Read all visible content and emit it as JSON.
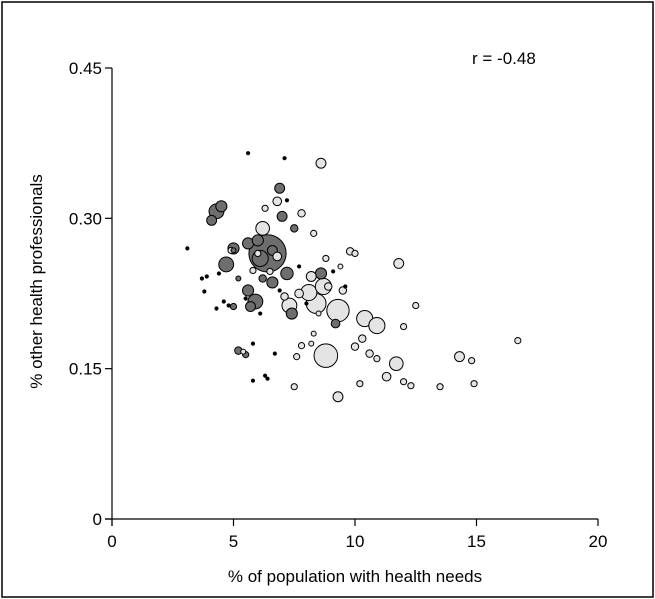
{
  "chart_data": {
    "type": "scatter",
    "title": "",
    "xlabel": "% of population with health needs",
    "ylabel": "% other health professionals",
    "xlim": [
      0,
      20
    ],
    "ylim": [
      0,
      0.45
    ],
    "xticks": [
      "0",
      "5",
      "10",
      "15",
      "20"
    ],
    "yticks": [
      "0",
      "0.15",
      "0.30",
      "0.45"
    ],
    "xtick_values": [
      0,
      5,
      10,
      15,
      20
    ],
    "ytick_values": [
      0,
      0.15,
      0.3,
      0.45
    ],
    "grid": false,
    "legend": "none",
    "annotation": "r = -0.48",
    "colors": {
      "dark": "#6e6e6e",
      "light": "#e4e4e4",
      "tiny": "#000000"
    },
    "points": [
      {
        "x": 6.4,
        "y": 0.265,
        "size": 3.0,
        "group": "dark"
      },
      {
        "x": 6.1,
        "y": 0.26,
        "size": 1.3,
        "group": "dark"
      },
      {
        "x": 6.6,
        "y": 0.268,
        "size": 0.8,
        "group": "dark"
      },
      {
        "x": 6.8,
        "y": 0.262,
        "size": 0.7,
        "group": "light"
      },
      {
        "x": 4.3,
        "y": 0.307,
        "size": 1.2,
        "group": "dark"
      },
      {
        "x": 4.5,
        "y": 0.312,
        "size": 0.9,
        "group": "dark"
      },
      {
        "x": 4.1,
        "y": 0.298,
        "size": 0.8,
        "group": "dark"
      },
      {
        "x": 4.7,
        "y": 0.254,
        "size": 1.2,
        "group": "dark"
      },
      {
        "x": 5.0,
        "y": 0.27,
        "size": 0.9,
        "group": "dark"
      },
      {
        "x": 4.9,
        "y": 0.268,
        "size": 0.5,
        "group": "light"
      },
      {
        "x": 5.6,
        "y": 0.275,
        "size": 0.9,
        "group": "dark"
      },
      {
        "x": 6.0,
        "y": 0.278,
        "size": 0.9,
        "group": "dark"
      },
      {
        "x": 5.9,
        "y": 0.217,
        "size": 1.2,
        "group": "dark"
      },
      {
        "x": 5.6,
        "y": 0.228,
        "size": 0.9,
        "group": "dark"
      },
      {
        "x": 5.7,
        "y": 0.212,
        "size": 0.8,
        "group": "dark"
      },
      {
        "x": 6.2,
        "y": 0.29,
        "size": 1.1,
        "group": "light"
      },
      {
        "x": 6.6,
        "y": 0.236,
        "size": 0.9,
        "group": "dark"
      },
      {
        "x": 6.9,
        "y": 0.33,
        "size": 0.8,
        "group": "dark"
      },
      {
        "x": 7.0,
        "y": 0.302,
        "size": 0.8,
        "group": "dark"
      },
      {
        "x": 6.8,
        "y": 0.317,
        "size": 0.7,
        "group": "light"
      },
      {
        "x": 7.2,
        "y": 0.245,
        "size": 1.0,
        "group": "dark"
      },
      {
        "x": 7.3,
        "y": 0.213,
        "size": 1.2,
        "group": "light"
      },
      {
        "x": 7.4,
        "y": 0.205,
        "size": 0.9,
        "group": "dark"
      },
      {
        "x": 7.1,
        "y": 0.222,
        "size": 0.6,
        "group": "light"
      },
      {
        "x": 7.7,
        "y": 0.225,
        "size": 0.7,
        "group": "light"
      },
      {
        "x": 7.5,
        "y": 0.29,
        "size": 0.6,
        "group": "dark"
      },
      {
        "x": 7.8,
        "y": 0.305,
        "size": 0.6,
        "group": "light"
      },
      {
        "x": 8.6,
        "y": 0.355,
        "size": 0.8,
        "group": "light"
      },
      {
        "x": 8.3,
        "y": 0.285,
        "size": 0.5,
        "group": "light"
      },
      {
        "x": 8.1,
        "y": 0.226,
        "size": 1.3,
        "group": "light"
      },
      {
        "x": 8.4,
        "y": 0.215,
        "size": 1.6,
        "group": "light"
      },
      {
        "x": 8.7,
        "y": 0.232,
        "size": 1.3,
        "group": "light"
      },
      {
        "x": 8.6,
        "y": 0.245,
        "size": 0.9,
        "group": "dark"
      },
      {
        "x": 8.2,
        "y": 0.242,
        "size": 0.8,
        "group": "light"
      },
      {
        "x": 8.9,
        "y": 0.232,
        "size": 0.6,
        "group": "light"
      },
      {
        "x": 8.8,
        "y": 0.26,
        "size": 0.5,
        "group": "light"
      },
      {
        "x": 8.8,
        "y": 0.163,
        "size": 1.9,
        "group": "light"
      },
      {
        "x": 9.3,
        "y": 0.208,
        "size": 1.8,
        "group": "light"
      },
      {
        "x": 9.2,
        "y": 0.195,
        "size": 0.7,
        "group": "dark"
      },
      {
        "x": 9.5,
        "y": 0.228,
        "size": 0.6,
        "group": "light"
      },
      {
        "x": 9.4,
        "y": 0.252,
        "size": 0.4,
        "group": "light"
      },
      {
        "x": 9.8,
        "y": 0.267,
        "size": 0.6,
        "group": "light"
      },
      {
        "x": 10.0,
        "y": 0.265,
        "size": 0.5,
        "group": "light"
      },
      {
        "x": 9.3,
        "y": 0.122,
        "size": 0.8,
        "group": "light"
      },
      {
        "x": 10.0,
        "y": 0.172,
        "size": 0.6,
        "group": "light"
      },
      {
        "x": 10.4,
        "y": 0.2,
        "size": 1.3,
        "group": "light"
      },
      {
        "x": 10.9,
        "y": 0.193,
        "size": 1.3,
        "group": "light"
      },
      {
        "x": 10.3,
        "y": 0.18,
        "size": 0.6,
        "group": "light"
      },
      {
        "x": 10.6,
        "y": 0.165,
        "size": 0.6,
        "group": "light"
      },
      {
        "x": 10.9,
        "y": 0.16,
        "size": 0.5,
        "group": "light"
      },
      {
        "x": 10.2,
        "y": 0.135,
        "size": 0.5,
        "group": "light"
      },
      {
        "x": 11.3,
        "y": 0.142,
        "size": 0.7,
        "group": "light"
      },
      {
        "x": 11.8,
        "y": 0.255,
        "size": 0.8,
        "group": "light"
      },
      {
        "x": 11.7,
        "y": 0.155,
        "size": 1.1,
        "group": "light"
      },
      {
        "x": 12.0,
        "y": 0.192,
        "size": 0.5,
        "group": "light"
      },
      {
        "x": 12.5,
        "y": 0.213,
        "size": 0.5,
        "group": "light"
      },
      {
        "x": 12.0,
        "y": 0.137,
        "size": 0.5,
        "group": "light"
      },
      {
        "x": 12.3,
        "y": 0.133,
        "size": 0.5,
        "group": "light"
      },
      {
        "x": 13.5,
        "y": 0.132,
        "size": 0.5,
        "group": "light"
      },
      {
        "x": 14.3,
        "y": 0.162,
        "size": 0.8,
        "group": "light"
      },
      {
        "x": 14.8,
        "y": 0.158,
        "size": 0.5,
        "group": "light"
      },
      {
        "x": 14.9,
        "y": 0.135,
        "size": 0.5,
        "group": "light"
      },
      {
        "x": 16.7,
        "y": 0.178,
        "size": 0.5,
        "group": "light"
      },
      {
        "x": 7.5,
        "y": 0.132,
        "size": 0.5,
        "group": "light"
      },
      {
        "x": 7.6,
        "y": 0.162,
        "size": 0.5,
        "group": "light"
      },
      {
        "x": 7.8,
        "y": 0.173,
        "size": 0.5,
        "group": "light"
      },
      {
        "x": 8.2,
        "y": 0.175,
        "size": 0.4,
        "group": "light"
      },
      {
        "x": 8.3,
        "y": 0.185,
        "size": 0.4,
        "group": "light"
      },
      {
        "x": 8.5,
        "y": 0.205,
        "size": 0.4,
        "group": "light"
      },
      {
        "x": 5.2,
        "y": 0.168,
        "size": 0.6,
        "group": "dark"
      },
      {
        "x": 5.5,
        "y": 0.164,
        "size": 0.5,
        "group": "dark"
      },
      {
        "x": 5.4,
        "y": 0.167,
        "size": 0.4,
        "group": "light"
      },
      {
        "x": 5.0,
        "y": 0.212,
        "size": 0.5,
        "group": "dark"
      },
      {
        "x": 5.2,
        "y": 0.24,
        "size": 0.4,
        "group": "dark"
      },
      {
        "x": 5.8,
        "y": 0.248,
        "size": 0.5,
        "group": "light"
      },
      {
        "x": 5.0,
        "y": 0.268,
        "size": 0.4,
        "group": "dark"
      },
      {
        "x": 6.5,
        "y": 0.247,
        "size": 0.5,
        "group": "light"
      },
      {
        "x": 6.2,
        "y": 0.24,
        "size": 0.6,
        "group": "dark"
      },
      {
        "x": 6.0,
        "y": 0.265,
        "size": 0.5,
        "group": "light"
      },
      {
        "x": 6.3,
        "y": 0.31,
        "size": 0.5,
        "group": "light"
      },
      {
        "x": 3.1,
        "y": 0.27,
        "size": 0.3,
        "group": "tiny"
      },
      {
        "x": 3.7,
        "y": 0.24,
        "size": 0.3,
        "group": "tiny"
      },
      {
        "x": 3.9,
        "y": 0.242,
        "size": 0.3,
        "group": "tiny"
      },
      {
        "x": 3.8,
        "y": 0.227,
        "size": 0.3,
        "group": "tiny"
      },
      {
        "x": 4.8,
        "y": 0.213,
        "size": 0.3,
        "group": "tiny"
      },
      {
        "x": 5.5,
        "y": 0.22,
        "size": 0.3,
        "group": "tiny"
      },
      {
        "x": 4.6,
        "y": 0.217,
        "size": 0.3,
        "group": "tiny"
      },
      {
        "x": 4.4,
        "y": 0.245,
        "size": 0.3,
        "group": "tiny"
      },
      {
        "x": 4.3,
        "y": 0.21,
        "size": 0.3,
        "group": "tiny"
      },
      {
        "x": 5.6,
        "y": 0.365,
        "size": 0.3,
        "group": "tiny"
      },
      {
        "x": 7.1,
        "y": 0.36,
        "size": 0.3,
        "group": "tiny"
      },
      {
        "x": 5.8,
        "y": 0.175,
        "size": 0.3,
        "group": "tiny"
      },
      {
        "x": 6.3,
        "y": 0.143,
        "size": 0.3,
        "group": "tiny"
      },
      {
        "x": 6.4,
        "y": 0.14,
        "size": 0.3,
        "group": "tiny"
      },
      {
        "x": 5.8,
        "y": 0.138,
        "size": 0.3,
        "group": "tiny"
      },
      {
        "x": 6.7,
        "y": 0.165,
        "size": 0.3,
        "group": "tiny"
      },
      {
        "x": 6.1,
        "y": 0.205,
        "size": 0.3,
        "group": "tiny"
      },
      {
        "x": 6.9,
        "y": 0.228,
        "size": 0.3,
        "group": "tiny"
      },
      {
        "x": 7.2,
        "y": 0.318,
        "size": 0.3,
        "group": "tiny"
      },
      {
        "x": 7.7,
        "y": 0.252,
        "size": 0.3,
        "group": "tiny"
      },
      {
        "x": 8.0,
        "y": 0.215,
        "size": 0.3,
        "group": "tiny"
      },
      {
        "x": 9.1,
        "y": 0.247,
        "size": 0.3,
        "group": "tiny"
      },
      {
        "x": 9.6,
        "y": 0.232,
        "size": 0.3,
        "group": "tiny"
      }
    ]
  }
}
